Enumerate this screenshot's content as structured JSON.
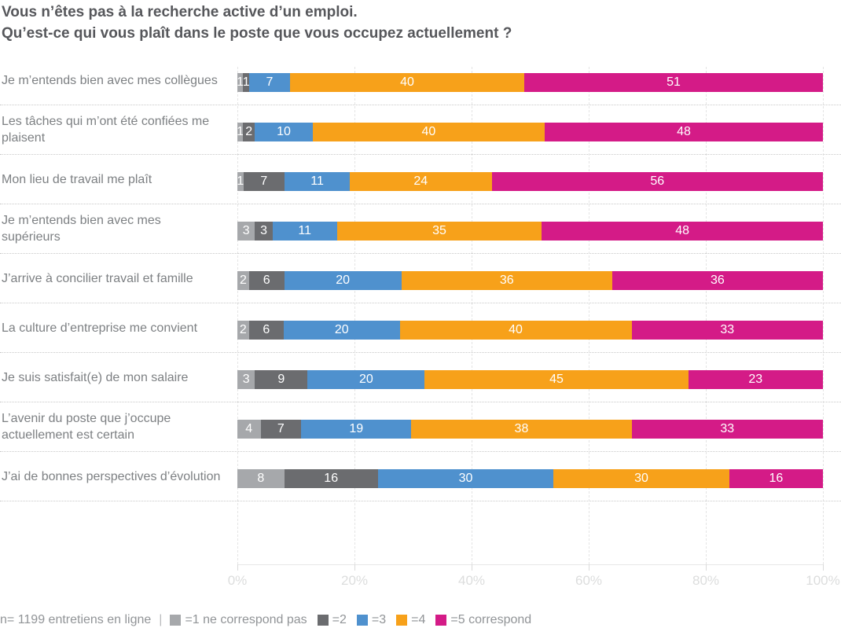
{
  "title": {
    "line1": "Vous n’êtes pas à la recherche active d’un emploi.",
    "line2": "Qu’est-ce qui vous plaît dans le poste que vous occupez actuellement ?"
  },
  "chart_data": {
    "type": "bar",
    "stacked": true,
    "orientation": "horizontal",
    "title": "Vous n’êtes pas à la recherche active d’un emploi. Qu’est-ce qui vous plaît dans le poste que vous occupez actuellement ?",
    "categories": [
      "Je m’entends bien avec mes collègues",
      "Les tâches qui m’ont été confiées me plaisent",
      "Mon lieu de travail me plaît",
      "Je m’entends bien avec mes supérieurs",
      "J’arrive à concilier travail et famille",
      "La culture d’entreprise me convient",
      "Je suis satisfait(e) de mon salaire",
      "L’avenir du poste que j’occupe actuellement est certain",
      "J’ai de bonnes perspectives d’évolution"
    ],
    "series": [
      {
        "name": "=1 ne correspond pas",
        "color": "#a6a8ab",
        "values": [
          1,
          1,
          1,
          3,
          2,
          2,
          3,
          4,
          8
        ]
      },
      {
        "name": "=2",
        "color": "#6b6c6f",
        "values": [
          1,
          2,
          7,
          3,
          6,
          6,
          9,
          7,
          16
        ]
      },
      {
        "name": "=3",
        "color": "#4f91ce",
        "values": [
          7,
          10,
          11,
          11,
          20,
          20,
          20,
          19,
          30
        ]
      },
      {
        "name": "=4",
        "color": "#f7a11a",
        "values": [
          40,
          40,
          24,
          35,
          36,
          40,
          45,
          38,
          30
        ]
      },
      {
        "name": "=5 correspond",
        "color": "#d41b87",
        "values": [
          51,
          48,
          56,
          48,
          36,
          33,
          23,
          33,
          16
        ]
      }
    ],
    "xlim": [
      0,
      100
    ],
    "x_ticks": [
      "0%",
      "20%",
      "40%",
      "60%",
      "80%",
      "100%"
    ],
    "grid": "vertical-dashed",
    "value_labels": "inside-white",
    "legend_position": "bottom"
  },
  "footer": {
    "note": "n= 1199 entretiens en ligne",
    "separator": "|"
  }
}
